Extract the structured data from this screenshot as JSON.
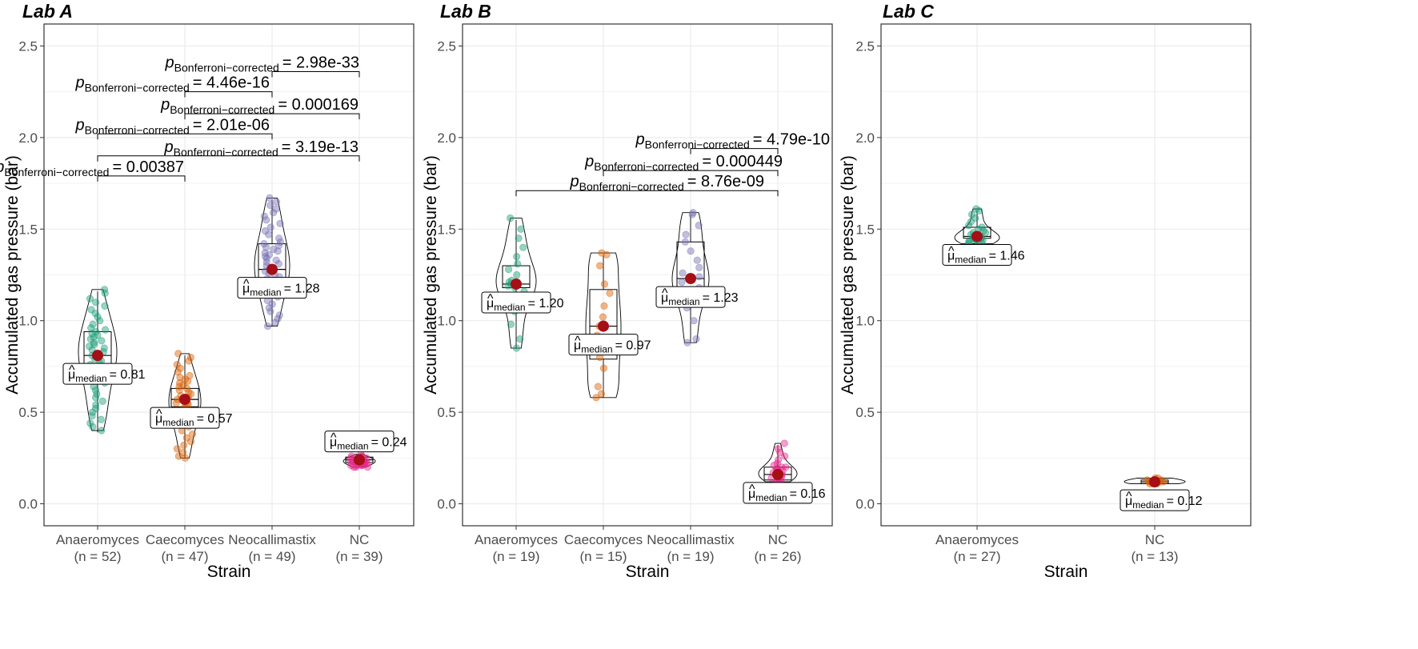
{
  "chart_data": [
    {
      "type": "violin-box-scatter",
      "title": "Lab A",
      "xlabel": "Strain",
      "ylabel": "Accumulated gas pressure (bar)",
      "ylim": [
        -0.12,
        2.62
      ],
      "yticks": [
        "0.0",
        "0.5",
        "1.0",
        "1.5",
        "2.0",
        "2.5"
      ],
      "categories": [
        {
          "name": "Anaeromyces",
          "n": "(n = 52)",
          "color": "#1b9e77",
          "median": 0.81,
          "median_label": "= 0.81",
          "q1": 0.72,
          "q3": 0.94,
          "min": 0.39,
          "max": 1.16,
          "points": [
            1.17,
            1.15,
            1.12,
            1.1,
            1.08,
            1.06,
            1.04,
            1.02,
            1.0,
            0.98,
            0.96,
            0.95,
            0.94,
            0.93,
            0.92,
            0.91,
            0.9,
            0.89,
            0.88,
            0.87,
            0.86,
            0.85,
            0.84,
            0.83,
            0.82,
            0.81,
            0.8,
            0.79,
            0.78,
            0.77,
            0.76,
            0.75,
            0.74,
            0.73,
            0.72,
            0.71,
            0.7,
            0.68,
            0.66,
            0.64,
            0.62,
            0.6,
            0.58,
            0.56,
            0.54,
            0.52,
            0.5,
            0.48,
            0.46,
            0.44,
            0.42,
            0.4
          ]
        },
        {
          "name": "Caecomyces",
          "n": "(n = 47)",
          "color": "#d95f02",
          "median": 0.57,
          "median_label": "= 0.57",
          "q1": 0.53,
          "q3": 0.63,
          "min": 0.25,
          "max": 0.81,
          "points": [
            0.82,
            0.8,
            0.78,
            0.76,
            0.74,
            0.72,
            0.7,
            0.69,
            0.68,
            0.67,
            0.66,
            0.65,
            0.64,
            0.63,
            0.62,
            0.61,
            0.6,
            0.59,
            0.58,
            0.57,
            0.57,
            0.56,
            0.56,
            0.55,
            0.55,
            0.54,
            0.53,
            0.52,
            0.51,
            0.5,
            0.49,
            0.48,
            0.47,
            0.46,
            0.45,
            0.44,
            0.43,
            0.42,
            0.4,
            0.38,
            0.36,
            0.34,
            0.32,
            0.3,
            0.28,
            0.26,
            0.25
          ]
        },
        {
          "name": "Neocallimastix",
          "n": "(n = 49)",
          "color": "#7570b3",
          "median": 1.28,
          "median_label": "= 1.28",
          "q1": 1.21,
          "q3": 1.42,
          "min": 0.97,
          "max": 1.66,
          "points": [
            1.67,
            1.65,
            1.63,
            1.61,
            1.59,
            1.57,
            1.55,
            1.53,
            1.51,
            1.49,
            1.47,
            1.45,
            1.43,
            1.42,
            1.41,
            1.4,
            1.39,
            1.38,
            1.37,
            1.36,
            1.35,
            1.34,
            1.33,
            1.32,
            1.31,
            1.3,
            1.29,
            1.28,
            1.27,
            1.26,
            1.25,
            1.24,
            1.23,
            1.22,
            1.21,
            1.2,
            1.19,
            1.18,
            1.17,
            1.15,
            1.13,
            1.11,
            1.09,
            1.07,
            1.05,
            1.03,
            1.01,
            0.99,
            0.97
          ]
        },
        {
          "name": "NC",
          "n": "(n = 39)",
          "color": "#e7298a",
          "median": 0.24,
          "median_label": "= 0.24",
          "q1": 0.225,
          "q3": 0.255,
          "min": 0.2,
          "max": 0.27,
          "points": [
            0.27,
            0.26,
            0.26,
            0.25,
            0.25,
            0.25,
            0.25,
            0.24,
            0.24,
            0.24,
            0.24,
            0.24,
            0.24,
            0.24,
            0.24,
            0.24,
            0.24,
            0.24,
            0.23,
            0.23,
            0.23,
            0.23,
            0.23,
            0.23,
            0.23,
            0.23,
            0.22,
            0.22,
            0.22,
            0.22,
            0.22,
            0.22,
            0.21,
            0.21,
            0.21,
            0.21,
            0.2,
            0.2,
            0.2
          ]
        }
      ],
      "comparisons": [
        {
          "from": 0,
          "to": 1,
          "y": 1.79,
          "value": "= 0.00387"
        },
        {
          "from": 0,
          "to": 3,
          "y": 1.9,
          "value": "= 3.19e-13"
        },
        {
          "from": 0,
          "to": 2,
          "y": 2.02,
          "value": "= 2.01e-06"
        },
        {
          "from": 1,
          "to": 3,
          "y": 2.13,
          "value": "= 0.000169"
        },
        {
          "from": 1,
          "to": 2,
          "y": 2.25,
          "value": "= 4.46e-16"
        },
        {
          "from": 2,
          "to": 3,
          "y": 2.36,
          "value": "= 2.98e-33"
        }
      ]
    },
    {
      "type": "violin-box-scatter",
      "title": "Lab B",
      "xlabel": "Strain",
      "ylabel": "Accumulated gas pressure (bar)",
      "ylim": [
        -0.12,
        2.62
      ],
      "yticks": [
        "0.0",
        "0.5",
        "1.0",
        "1.5",
        "2.0",
        "2.5"
      ],
      "categories": [
        {
          "name": "Anaeromyces",
          "n": "(n = 19)",
          "color": "#1b9e77",
          "median": 1.2,
          "median_label": "= 1.20",
          "q1": 1.18,
          "q3": 1.3,
          "min": 0.85,
          "max": 1.55,
          "points": [
            1.56,
            1.5,
            1.45,
            1.4,
            1.35,
            1.31,
            1.28,
            1.25,
            1.22,
            1.21,
            1.2,
            1.19,
            1.18,
            1.16,
            1.12,
            1.05,
            0.98,
            0.9,
            0.85
          ]
        },
        {
          "name": "Caecomyces",
          "n": "(n = 15)",
          "color": "#d95f02",
          "median": 0.97,
          "median_label": "= 0.97",
          "q1": 0.79,
          "q3": 1.17,
          "min": 0.58,
          "max": 1.36,
          "points": [
            1.37,
            1.36,
            1.3,
            1.2,
            1.15,
            1.08,
            1.02,
            0.97,
            0.92,
            0.85,
            0.8,
            0.74,
            0.64,
            0.6,
            0.58
          ]
        },
        {
          "name": "Neocallimastix",
          "n": "(n = 19)",
          "color": "#7570b3",
          "median": 1.23,
          "median_label": "= 1.23",
          "q1": 1.14,
          "q3": 1.43,
          "min": 0.88,
          "max": 1.58,
          "points": [
            1.59,
            1.58,
            1.52,
            1.47,
            1.43,
            1.38,
            1.33,
            1.29,
            1.26,
            1.24,
            1.23,
            1.21,
            1.18,
            1.15,
            1.12,
            1.07,
            1.0,
            0.9,
            0.88
          ]
        },
        {
          "name": "NC",
          "n": "(n = 26)",
          "color": "#e7298a",
          "median": 0.16,
          "median_label": "= 0.16",
          "q1": 0.13,
          "q3": 0.2,
          "min": 0.12,
          "max": 0.32,
          "points": [
            0.33,
            0.3,
            0.28,
            0.26,
            0.24,
            0.22,
            0.21,
            0.2,
            0.2,
            0.19,
            0.19,
            0.18,
            0.18,
            0.17,
            0.17,
            0.16,
            0.16,
            0.16,
            0.15,
            0.15,
            0.14,
            0.14,
            0.13,
            0.13,
            0.12,
            0.12
          ]
        }
      ],
      "comparisons": [
        {
          "from": 0,
          "to": 3,
          "y": 1.71,
          "value": "= 8.76e-09"
        },
        {
          "from": 1,
          "to": 3,
          "y": 1.82,
          "value": "= 0.000449"
        },
        {
          "from": 2,
          "to": 3,
          "y": 1.94,
          "value": "= 4.79e-10"
        }
      ]
    },
    {
      "type": "violin-box-scatter",
      "title": "Lab C",
      "xlabel": "Strain",
      "ylabel": "Accumulated gas pressure (bar)",
      "ylim": [
        -0.12,
        2.62
      ],
      "yticks": [
        "0.0",
        "0.5",
        "1.0",
        "1.5",
        "2.0",
        "2.5"
      ],
      "categories": [
        {
          "name": "Anaeromyces",
          "n": "(n = 27)",
          "color": "#1b9e77",
          "median": 1.46,
          "median_label": "= 1.46",
          "q1": 1.45,
          "q3": 1.51,
          "min": 1.42,
          "max": 1.6,
          "points": [
            1.61,
            1.6,
            1.58,
            1.56,
            1.54,
            1.52,
            1.51,
            1.5,
            1.49,
            1.48,
            1.48,
            1.47,
            1.47,
            1.46,
            1.46,
            1.46,
            1.45,
            1.45,
            1.45,
            1.44,
            1.44,
            1.44,
            1.43,
            1.43,
            1.43,
            1.42,
            1.42
          ]
        },
        {
          "name": "NC",
          "n": "(n = 13)",
          "color": "#d95f02",
          "median": 0.12,
          "median_label": "= 0.12",
          "q1": 0.11,
          "q3": 0.13,
          "min": 0.105,
          "max": 0.14,
          "points": [
            0.14,
            0.14,
            0.13,
            0.13,
            0.13,
            0.12,
            0.12,
            0.12,
            0.12,
            0.11,
            0.11,
            0.11,
            0.11
          ]
        }
      ],
      "comparisons": []
    }
  ],
  "p_label": {
    "p": "p",
    "sub": "Bonferroni−corrected"
  },
  "median_symbol": {
    "mu": "μ",
    "sub": "median",
    "hat": "^"
  },
  "colors": {
    "median_point": "#a50f15",
    "grid": "#ebebeb",
    "panel_border": "#333333",
    "violin": "#000000"
  }
}
